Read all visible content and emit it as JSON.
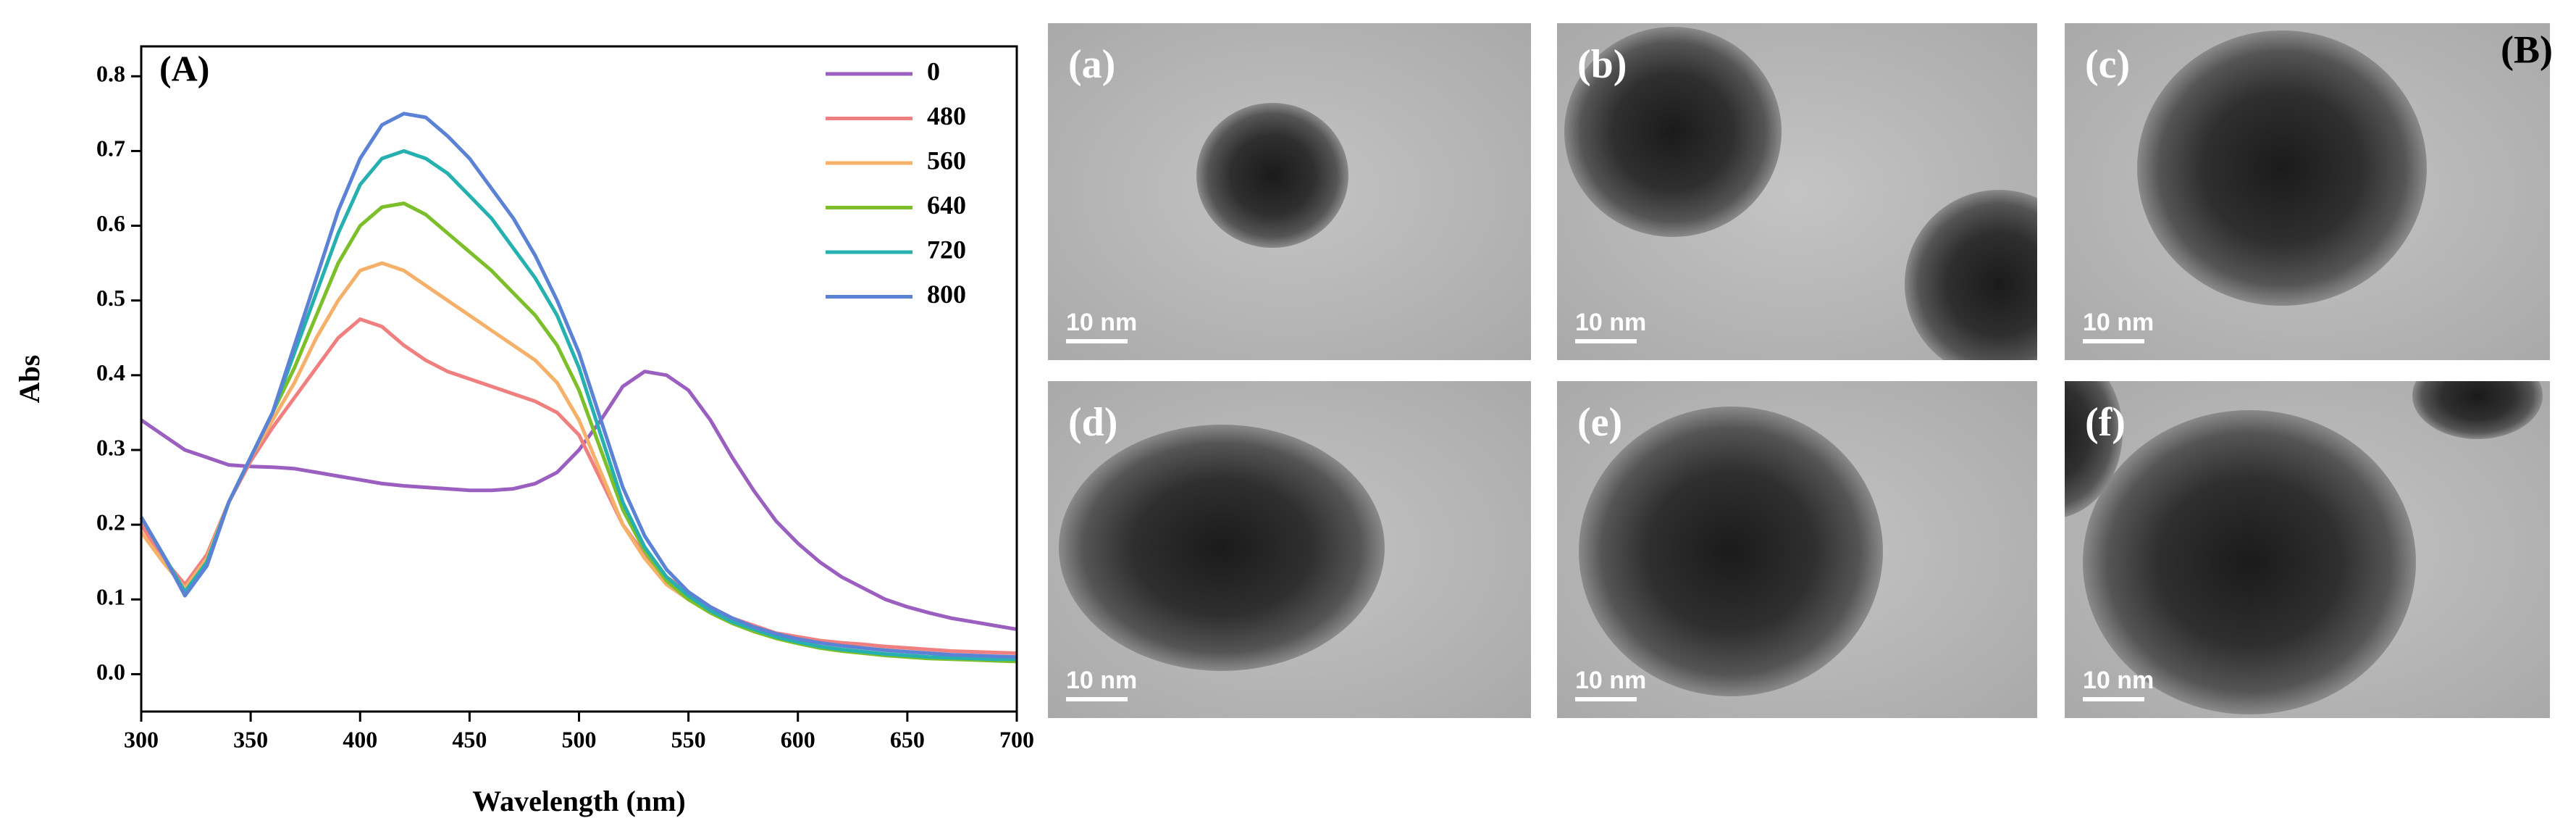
{
  "chart_data": {
    "type": "line",
    "panel_label": "(A)",
    "x_label": "Wavelength (nm)",
    "y_label": "Abs",
    "xlim": [
      300,
      700
    ],
    "ylim": [
      -0.05,
      0.84
    ],
    "xticks": [
      300,
      350,
      400,
      450,
      500,
      550,
      600,
      650,
      700
    ],
    "yticks": [
      {
        "value": 0,
        "label": "0.0"
      },
      0.1,
      0.2,
      0.3,
      0.4,
      0.5,
      0.6,
      0.7,
      0.8
    ],
    "x": [
      300,
      310,
      320,
      330,
      340,
      350,
      360,
      370,
      380,
      390,
      400,
      410,
      420,
      430,
      440,
      450,
      460,
      470,
      480,
      490,
      500,
      510,
      520,
      530,
      540,
      550,
      560,
      570,
      580,
      590,
      600,
      610,
      620,
      630,
      640,
      650,
      660,
      670,
      680,
      690,
      700
    ],
    "series": [
      {
        "name": "0",
        "color": "#9b5fc0",
        "values": [
          0.34,
          0.32,
          0.3,
          0.29,
          0.28,
          0.278,
          0.277,
          0.275,
          0.27,
          0.265,
          0.26,
          0.255,
          0.252,
          0.25,
          0.248,
          0.246,
          0.246,
          0.248,
          0.255,
          0.27,
          0.3,
          0.34,
          0.385,
          0.405,
          0.4,
          0.38,
          0.34,
          0.29,
          0.245,
          0.205,
          0.175,
          0.15,
          0.13,
          0.115,
          0.1,
          0.09,
          0.082,
          0.075,
          0.07,
          0.065,
          0.06
        ]
      },
      {
        "name": "480",
        "color": "#f08080",
        "values": [
          0.2,
          0.155,
          0.12,
          0.16,
          0.23,
          0.285,
          0.33,
          0.37,
          0.41,
          0.45,
          0.475,
          0.465,
          0.44,
          0.42,
          0.405,
          0.395,
          0.385,
          0.375,
          0.365,
          0.35,
          0.32,
          0.26,
          0.2,
          0.16,
          0.13,
          0.11,
          0.09,
          0.075,
          0.065,
          0.055,
          0.05,
          0.045,
          0.042,
          0.04,
          0.037,
          0.035,
          0.033,
          0.031,
          0.03,
          0.029,
          0.028
        ]
      },
      {
        "name": "560",
        "color": "#f5b06a",
        "values": [
          0.19,
          0.15,
          0.115,
          0.155,
          0.23,
          0.29,
          0.34,
          0.39,
          0.45,
          0.5,
          0.54,
          0.55,
          0.54,
          0.52,
          0.5,
          0.48,
          0.46,
          0.44,
          0.42,
          0.39,
          0.34,
          0.27,
          0.2,
          0.155,
          0.12,
          0.1,
          0.083,
          0.07,
          0.06,
          0.05,
          0.043,
          0.037,
          0.033,
          0.03,
          0.027,
          0.025,
          0.023,
          0.021,
          0.02,
          0.019,
          0.018
        ]
      },
      {
        "name": "640",
        "color": "#7cbf2a",
        "values": [
          0.21,
          0.16,
          0.11,
          0.15,
          0.23,
          0.29,
          0.35,
          0.41,
          0.48,
          0.55,
          0.6,
          0.625,
          0.63,
          0.615,
          0.59,
          0.565,
          0.54,
          0.51,
          0.48,
          0.44,
          0.38,
          0.3,
          0.22,
          0.165,
          0.125,
          0.1,
          0.082,
          0.068,
          0.057,
          0.048,
          0.041,
          0.035,
          0.031,
          0.028,
          0.025,
          0.023,
          0.021,
          0.02,
          0.019,
          0.018,
          0.017
        ]
      },
      {
        "name": "720",
        "color": "#26b0b0",
        "values": [
          0.21,
          0.16,
          0.11,
          0.15,
          0.23,
          0.29,
          0.35,
          0.43,
          0.51,
          0.59,
          0.655,
          0.69,
          0.7,
          0.69,
          0.67,
          0.64,
          0.61,
          0.57,
          0.53,
          0.48,
          0.41,
          0.32,
          0.23,
          0.17,
          0.13,
          0.105,
          0.085,
          0.07,
          0.06,
          0.05,
          0.043,
          0.037,
          0.033,
          0.03,
          0.027,
          0.025,
          0.023,
          0.022,
          0.021,
          0.02,
          0.02
        ]
      },
      {
        "name": "800",
        "color": "#5b82d4",
        "values": [
          0.21,
          0.16,
          0.105,
          0.145,
          0.23,
          0.29,
          0.35,
          0.44,
          0.53,
          0.62,
          0.69,
          0.735,
          0.75,
          0.745,
          0.72,
          0.69,
          0.65,
          0.61,
          0.56,
          0.5,
          0.43,
          0.34,
          0.25,
          0.185,
          0.14,
          0.11,
          0.09,
          0.075,
          0.063,
          0.054,
          0.047,
          0.042,
          0.038,
          0.035,
          0.032,
          0.03,
          0.028,
          0.026,
          0.025,
          0.024,
          0.023
        ]
      }
    ]
  },
  "tem_panel": {
    "label": "(B)",
    "images": [
      {
        "label": "(a)",
        "scale_bar": "10 nm"
      },
      {
        "label": "(b)",
        "scale_bar": "10 nm"
      },
      {
        "label": "(c)",
        "scale_bar": "10 nm"
      },
      {
        "label": "(d)",
        "scale_bar": "10 nm"
      },
      {
        "label": "(e)",
        "scale_bar": "10 nm"
      },
      {
        "label": "(f)",
        "scale_bar": "10 nm"
      }
    ]
  }
}
